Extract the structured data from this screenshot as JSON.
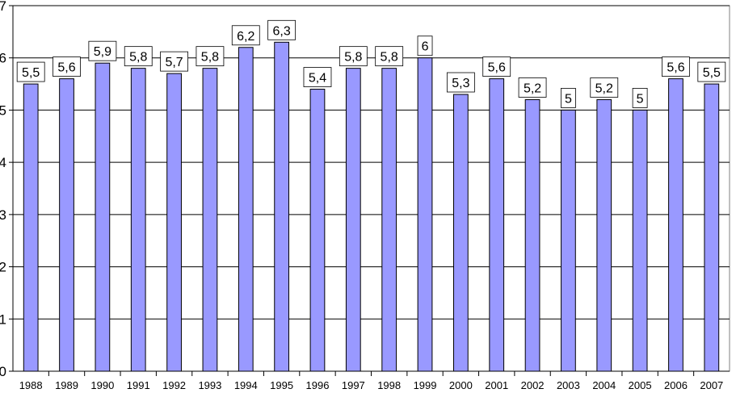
{
  "chart_data": {
    "type": "bar",
    "title": "",
    "xlabel": "",
    "ylabel": "",
    "ylim": [
      0,
      7
    ],
    "yticks": [
      "0",
      "1",
      "2",
      "3",
      "4",
      "5",
      "6",
      "7"
    ],
    "grid": true,
    "legend": "none",
    "categories": [
      "1988",
      "1989",
      "1990",
      "1991",
      "1992",
      "1993",
      "1994",
      "1995",
      "1996",
      "1997",
      "1998",
      "1999",
      "2000",
      "2001",
      "2002",
      "2003",
      "2004",
      "2005",
      "2006",
      "2007"
    ],
    "values": [
      5.5,
      5.6,
      5.9,
      5.8,
      5.7,
      5.8,
      6.2,
      6.3,
      5.4,
      5.8,
      5.8,
      6.0,
      5.3,
      5.6,
      5.2,
      5.0,
      5.2,
      5.0,
      5.6,
      5.5
    ],
    "data_labels": [
      "5,5",
      "5,6",
      "5,9",
      "5,8",
      "5,7",
      "5,8",
      "6,2",
      "6,3",
      "5,4",
      "5,8",
      "5,8",
      "6",
      "5,3",
      "5,6",
      "5,2",
      "5",
      "5,2",
      "5",
      "5,6",
      "5,5"
    ],
    "colors": {
      "bar": "#9999ff",
      "bar_stroke": "#000000",
      "grid": "#000000",
      "plot_bg": "#ffffff"
    }
  }
}
